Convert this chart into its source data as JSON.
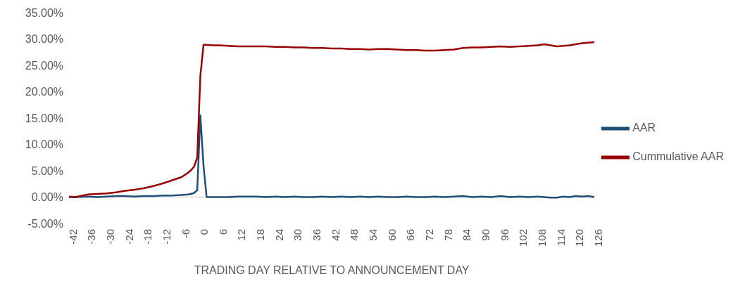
{
  "chart_data": {
    "type": "line",
    "xlabel": "TRADING DAY RELATIVE TO ANNOUNCEMENT DAY",
    "x": [
      -42,
      -40,
      -36,
      -33,
      -30,
      -27,
      -24,
      -21,
      -18,
      -15,
      -12,
      -9,
      -6,
      -4,
      -3,
      -2,
      -1,
      0,
      1,
      2,
      4,
      6,
      9,
      12,
      15,
      18,
      21,
      24,
      27,
      30,
      33,
      36,
      39,
      42,
      45,
      48,
      51,
      54,
      57,
      60,
      63,
      66,
      69,
      72,
      75,
      78,
      81,
      84,
      87,
      90,
      93,
      96,
      99,
      102,
      105,
      108,
      110,
      112,
      114,
      116,
      118,
      120,
      122,
      124,
      126
    ],
    "series": [
      {
        "name": "AAR",
        "color": "#1f4e79",
        "values": [
          0.0,
          0.0,
          0.1,
          0.0,
          0.1,
          0.2,
          0.2,
          0.1,
          0.2,
          0.2,
          0.3,
          0.3,
          0.4,
          0.5,
          0.6,
          0.8,
          1.3,
          15.5,
          6.0,
          0.0,
          0.0,
          0.0,
          0.0,
          0.1,
          0.1,
          0.1,
          0.0,
          0.1,
          0.0,
          0.1,
          0.0,
          0.0,
          0.1,
          0.0,
          0.1,
          0.0,
          0.1,
          0.0,
          0.1,
          0.0,
          0.0,
          0.1,
          0.0,
          0.0,
          0.1,
          0.0,
          0.1,
          0.2,
          0.0,
          0.1,
          0.0,
          0.2,
          0.0,
          0.1,
          0.0,
          0.1,
          0.0,
          -0.1,
          -0.1,
          0.1,
          0.0,
          0.2,
          0.1,
          0.2,
          0.0
        ]
      },
      {
        "name": "Cummulative AAR",
        "color": "#990000",
        "values": [
          0.1,
          0.0,
          0.5,
          0.6,
          0.7,
          0.9,
          1.2,
          1.4,
          1.7,
          2.1,
          2.6,
          3.2,
          3.8,
          4.6,
          5.1,
          5.8,
          7.5,
          23.0,
          28.9,
          28.9,
          28.8,
          28.8,
          28.7,
          28.6,
          28.6,
          28.6,
          28.6,
          28.5,
          28.5,
          28.4,
          28.4,
          28.3,
          28.3,
          28.2,
          28.2,
          28.1,
          28.1,
          28.0,
          28.1,
          28.1,
          28.0,
          27.9,
          27.9,
          27.8,
          27.8,
          27.9,
          28.0,
          28.3,
          28.4,
          28.4,
          28.5,
          28.6,
          28.5,
          28.6,
          28.7,
          28.8,
          29.0,
          28.8,
          28.6,
          28.7,
          28.8,
          29.0,
          29.2,
          29.3,
          29.4
        ]
      }
    ],
    "xlim": [
      -42,
      126
    ],
    "xticks": [
      -42,
      -36,
      -30,
      -24,
      -18,
      -12,
      -6,
      0,
      6,
      12,
      18,
      24,
      30,
      36,
      42,
      48,
      54,
      60,
      66,
      72,
      78,
      84,
      90,
      96,
      102,
      108,
      114,
      120,
      126
    ],
    "ylim": [
      -5,
      35
    ],
    "yticks": [
      {
        "value": -5,
        "label": "-5.00%"
      },
      {
        "value": 0,
        "label": "0.00%"
      },
      {
        "value": 5,
        "label": "5.00%"
      },
      {
        "value": 10,
        "label": "10.00%"
      },
      {
        "value": 15,
        "label": "15.00%"
      },
      {
        "value": 20,
        "label": "20.00%"
      },
      {
        "value": 25,
        "label": "25.00%"
      },
      {
        "value": 30,
        "label": "30.00%"
      },
      {
        "value": 35,
        "label": "35.00%"
      }
    ],
    "legend": "right",
    "marker": "none",
    "line_style": "solid"
  }
}
